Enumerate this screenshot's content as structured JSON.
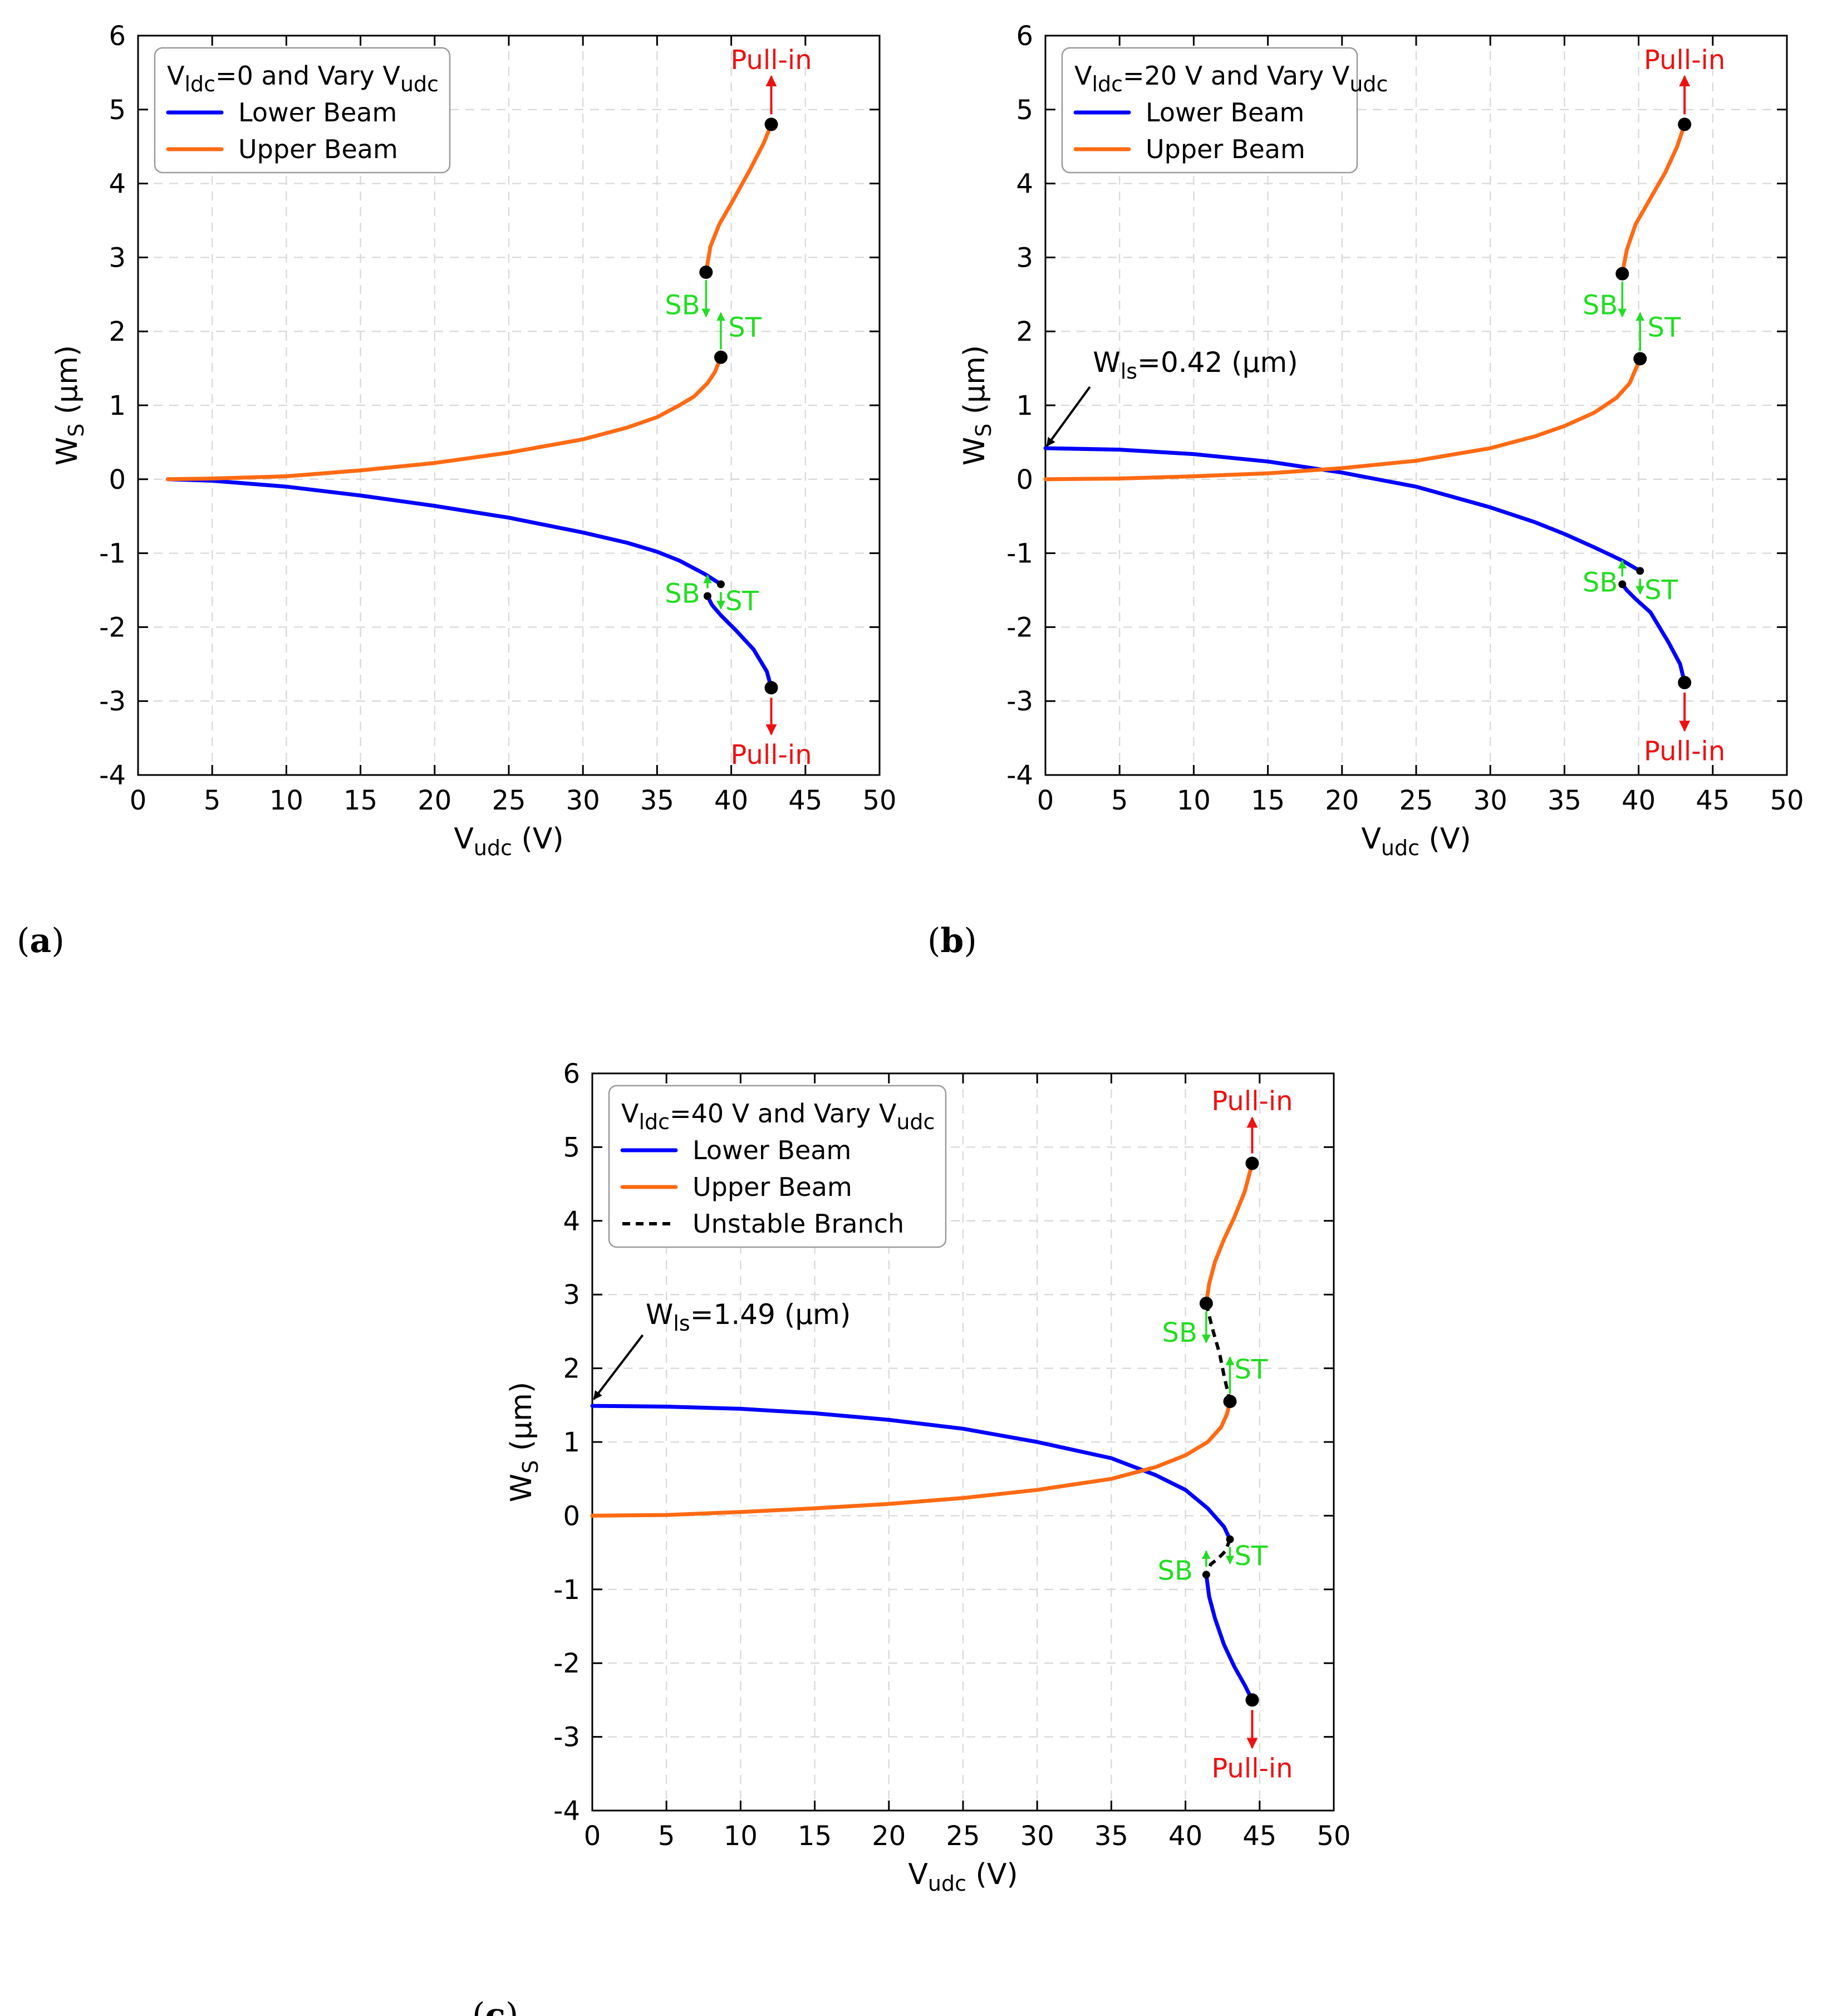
{
  "colors": {
    "lower_beam": "#0000ff",
    "upper_beam": "#ff6a13",
    "pull_in": "#ee1111",
    "transition": "#22dd22",
    "unstable": "#000000"
  },
  "chart_data": [
    {
      "type": "line",
      "panel_label": "a",
      "title": "",
      "xlabel": "V",
      "xlabel_sub": "udc",
      "xlabel_unit": " (V)",
      "ylabel": "W",
      "ylabel_sub": "S",
      "ylabel_unit": " (µm)",
      "xlim": [
        0,
        50
      ],
      "ylim": [
        -4,
        6
      ],
      "x_ticks": [
        "0",
        "5",
        "10",
        "15",
        "20",
        "25",
        "30",
        "35",
        "40",
        "45",
        "50"
      ],
      "y_ticks": [
        "-4",
        "-3",
        "-2",
        "-1",
        "0",
        "1",
        "2",
        "3",
        "4",
        "5",
        "6"
      ],
      "legend": {
        "title_parts": [
          "V",
          "ldc",
          "=0 and Vary V",
          "udc"
        ],
        "entries": [
          "Lower Beam",
          "Upper Beam"
        ],
        "position": "top-left"
      },
      "series": [
        {
          "name": "Lower Beam",
          "role": "lower",
          "x": [
            2,
            5,
            10,
            15,
            20,
            25,
            30,
            33,
            35,
            36.5,
            38.2,
            39.3
          ],
          "y": [
            0,
            -0.02,
            -0.1,
            -0.22,
            -0.36,
            -0.52,
            -0.72,
            -0.86,
            -0.98,
            -1.1,
            -1.28,
            -1.42
          ]
        },
        {
          "name": "Lower Beam",
          "role": "lower",
          "x": [
            38.4,
            38.7,
            39.3,
            40.3,
            41.5,
            42.4,
            42.7
          ],
          "y": [
            -1.58,
            -1.7,
            -1.84,
            -2.04,
            -2.3,
            -2.6,
            -2.82
          ]
        },
        {
          "name": "Upper Beam",
          "role": "upper",
          "x": [
            2,
            5,
            10,
            15,
            20,
            25,
            30,
            33,
            35,
            36.5,
            37.5,
            38.4,
            38.9,
            39.3
          ],
          "y": [
            0,
            0.01,
            0.04,
            0.12,
            0.22,
            0.36,
            0.54,
            0.7,
            0.84,
            1.0,
            1.12,
            1.3,
            1.45,
            1.65
          ]
        },
        {
          "name": "Upper Beam",
          "role": "upper",
          "x": [
            38.3,
            38.6,
            39.2,
            40.2,
            41.3,
            42.2,
            42.7
          ],
          "y": [
            2.8,
            3.15,
            3.45,
            3.8,
            4.2,
            4.55,
            4.8
          ]
        }
      ],
      "markers": [
        {
          "x": 42.7,
          "y": 4.8,
          "size": "large"
        },
        {
          "x": 38.3,
          "y": 2.8,
          "size": "large"
        },
        {
          "x": 39.3,
          "y": 1.65,
          "size": "large"
        },
        {
          "x": 42.7,
          "y": -2.82,
          "size": "large"
        },
        {
          "x": 39.3,
          "y": -1.42,
          "size": "small"
        },
        {
          "x": 38.4,
          "y": -1.58,
          "size": "small"
        }
      ],
      "arrows": [
        {
          "kind": "pull-in",
          "x": 42.7,
          "from": 4.8,
          "to": 5.45
        },
        {
          "kind": "pull-in",
          "x": 42.7,
          "from": -2.82,
          "to": -3.45
        },
        {
          "kind": "transition",
          "x": 38.3,
          "from": 2.8,
          "to": 2.2
        },
        {
          "kind": "transition",
          "x": 39.3,
          "from": 1.65,
          "to": 2.25
        },
        {
          "kind": "transition",
          "x": 38.4,
          "from": -1.58,
          "to": -1.3
        },
        {
          "kind": "transition",
          "x": 39.3,
          "from": -1.42,
          "to": -1.75
        }
      ],
      "labels": [
        {
          "text": "Pull-in",
          "kind": "pull-in",
          "x": 42.7,
          "y": 5.55,
          "anchor": "middle",
          "valign": "bottom"
        },
        {
          "text": "Pull-in",
          "kind": "pull-in",
          "x": 42.7,
          "y": -3.55,
          "anchor": "middle",
          "valign": "top"
        },
        {
          "text": "SB",
          "kind": "transition",
          "x": 37.9,
          "y": 2.35,
          "anchor": "end",
          "valign": "middle"
        },
        {
          "text": "ST",
          "kind": "transition",
          "x": 39.8,
          "y": 2.05,
          "anchor": "start",
          "valign": "middle"
        },
        {
          "text": "SB",
          "kind": "transition",
          "x": 37.9,
          "y": -1.55,
          "anchor": "end",
          "valign": "middle"
        },
        {
          "text": "ST",
          "kind": "transition",
          "x": 39.6,
          "y": -1.65,
          "anchor": "start",
          "valign": "middle"
        }
      ],
      "annotation": null
    },
    {
      "type": "line",
      "panel_label": "b",
      "title": "",
      "xlabel": "V",
      "xlabel_sub": "udc",
      "xlabel_unit": " (V)",
      "ylabel": "W",
      "ylabel_sub": "S",
      "ylabel_unit": " (µm)",
      "xlim": [
        0,
        50
      ],
      "ylim": [
        -4,
        6
      ],
      "x_ticks": [
        "0",
        "5",
        "10",
        "15",
        "20",
        "25",
        "30",
        "35",
        "40",
        "45",
        "50"
      ],
      "y_ticks": [
        "-4",
        "-3",
        "-2",
        "-1",
        "0",
        "1",
        "2",
        "3",
        "4",
        "5",
        "6"
      ],
      "legend": {
        "title_parts": [
          "V",
          "ldc",
          "=20 V and Vary V",
          "udc"
        ],
        "entries": [
          "Lower Beam",
          "Upper Beam"
        ],
        "position": "top-left"
      },
      "series": [
        {
          "name": "Lower Beam",
          "role": "lower",
          "x": [
            0,
            5,
            10,
            15,
            20,
            25,
            30,
            33,
            35,
            37,
            38.9,
            40.1
          ],
          "y": [
            0.42,
            0.4,
            0.34,
            0.24,
            0.09,
            -0.1,
            -0.38,
            -0.58,
            -0.74,
            -0.92,
            -1.1,
            -1.24
          ]
        },
        {
          "name": "Lower Beam",
          "role": "lower",
          "x": [
            38.9,
            39.2,
            39.8,
            40.8,
            42,
            42.8,
            43.1
          ],
          "y": [
            -1.42,
            -1.5,
            -1.62,
            -1.8,
            -2.2,
            -2.5,
            -2.75
          ]
        },
        {
          "name": "Upper Beam",
          "role": "upper",
          "x": [
            0,
            5,
            10,
            15,
            20,
            25,
            30,
            33,
            35,
            37,
            38.5,
            39.4,
            40.1
          ],
          "y": [
            0,
            0.01,
            0.04,
            0.08,
            0.15,
            0.25,
            0.42,
            0.58,
            0.72,
            0.9,
            1.1,
            1.3,
            1.63
          ]
        },
        {
          "name": "Upper Beam",
          "role": "upper",
          "x": [
            38.9,
            39.2,
            39.8,
            40.8,
            41.8,
            42.6,
            43.1
          ],
          "y": [
            2.78,
            3.1,
            3.45,
            3.8,
            4.15,
            4.5,
            4.8
          ]
        }
      ],
      "markers": [
        {
          "x": 43.1,
          "y": 4.8,
          "size": "large"
        },
        {
          "x": 38.9,
          "y": 2.78,
          "size": "large"
        },
        {
          "x": 40.1,
          "y": 1.63,
          "size": "large"
        },
        {
          "x": 43.1,
          "y": -2.75,
          "size": "large"
        },
        {
          "x": 40.1,
          "y": -1.24,
          "size": "small"
        },
        {
          "x": 38.9,
          "y": -1.42,
          "size": "small"
        }
      ],
      "arrows": [
        {
          "kind": "pull-in",
          "x": 43.1,
          "from": 4.8,
          "to": 5.45
        },
        {
          "kind": "pull-in",
          "x": 43.1,
          "from": -2.75,
          "to": -3.4
        },
        {
          "kind": "transition",
          "x": 38.9,
          "from": 2.78,
          "to": 2.2
        },
        {
          "kind": "transition",
          "x": 40.1,
          "from": 1.63,
          "to": 2.25
        },
        {
          "kind": "transition",
          "x": 38.9,
          "from": -1.42,
          "to": -1.1
        },
        {
          "kind": "transition",
          "x": 40.1,
          "from": -1.24,
          "to": -1.55
        }
      ],
      "labels": [
        {
          "text": "Pull-in",
          "kind": "pull-in",
          "x": 43.1,
          "y": 5.55,
          "anchor": "middle",
          "valign": "bottom"
        },
        {
          "text": "Pull-in",
          "kind": "pull-in",
          "x": 43.1,
          "y": -3.5,
          "anchor": "middle",
          "valign": "top"
        },
        {
          "text": "SB",
          "kind": "transition",
          "x": 38.6,
          "y": 2.35,
          "anchor": "end",
          "valign": "middle"
        },
        {
          "text": "ST",
          "kind": "transition",
          "x": 40.6,
          "y": 2.05,
          "anchor": "start",
          "valign": "middle"
        },
        {
          "text": "SB",
          "kind": "transition",
          "x": 38.6,
          "y": -1.4,
          "anchor": "end",
          "valign": "middle"
        },
        {
          "text": "ST",
          "kind": "transition",
          "x": 40.4,
          "y": -1.5,
          "anchor": "start",
          "valign": "middle"
        }
      ],
      "annotation": {
        "text_parts": [
          "W",
          "ls",
          "=0.42 (µm)"
        ],
        "text_x": 3.2,
        "text_y": 1.45,
        "arrow_from": [
          3.0,
          1.25
        ],
        "arrow_to": [
          0.1,
          0.45
        ]
      }
    },
    {
      "type": "line",
      "panel_label": "c",
      "title": "",
      "xlabel": "V",
      "xlabel_sub": "udc",
      "xlabel_unit": " (V)",
      "ylabel": "W",
      "ylabel_sub": "S",
      "ylabel_unit": " (µm)",
      "xlim": [
        0,
        50
      ],
      "ylim": [
        -4,
        6
      ],
      "x_ticks": [
        "0",
        "5",
        "10",
        "15",
        "20",
        "25",
        "30",
        "35",
        "40",
        "45",
        "50"
      ],
      "y_ticks": [
        "-4",
        "-3",
        "-2",
        "-1",
        "0",
        "1",
        "2",
        "3",
        "4",
        "5",
        "6"
      ],
      "legend": {
        "title_parts": [
          "V",
          "ldc",
          "=40 V and Vary V",
          "udc"
        ],
        "entries": [
          "Lower Beam",
          "Upper Beam",
          "Unstable Branch"
        ],
        "position": "top-left"
      },
      "series": [
        {
          "name": "Lower Beam",
          "role": "lower",
          "x": [
            0,
            5,
            10,
            15,
            20,
            25,
            30,
            35,
            38,
            40,
            41.5,
            42.6,
            43
          ],
          "y": [
            1.49,
            1.48,
            1.45,
            1.39,
            1.3,
            1.18,
            1.0,
            0.78,
            0.55,
            0.35,
            0.1,
            -0.15,
            -0.32
          ]
        },
        {
          "name": "Lower Beam",
          "role": "lower",
          "x": [
            41.4,
            41.6,
            42,
            42.6,
            43.3,
            44,
            44.5
          ],
          "y": [
            -0.8,
            -1.1,
            -1.4,
            -1.75,
            -2.05,
            -2.3,
            -2.5
          ]
        },
        {
          "name": "Upper Beam",
          "role": "upper",
          "x": [
            0,
            5,
            10,
            15,
            20,
            25,
            30,
            35,
            38,
            40,
            41.5,
            42.4,
            42.8,
            43
          ],
          "y": [
            0,
            0.01,
            0.05,
            0.1,
            0.16,
            0.24,
            0.35,
            0.5,
            0.66,
            0.82,
            1.0,
            1.2,
            1.38,
            1.55
          ]
        },
        {
          "name": "Upper Beam",
          "role": "upper",
          "x": [
            41.4,
            41.6,
            42,
            42.6,
            43.3,
            44,
            44.5
          ],
          "y": [
            2.88,
            3.15,
            3.45,
            3.75,
            4.05,
            4.4,
            4.78
          ]
        },
        {
          "name": "Unstable Branch",
          "role": "unstable",
          "x": [
            41.4,
            41.8,
            42.3,
            42.6,
            43
          ],
          "y": [
            2.88,
            2.55,
            2.2,
            1.9,
            1.55
          ]
        },
        {
          "name": "Unstable Branch",
          "role": "unstable",
          "x": [
            43,
            42.7,
            42.2,
            41.7,
            41.4
          ],
          "y": [
            -0.32,
            -0.48,
            -0.58,
            -0.66,
            -0.8
          ]
        }
      ],
      "markers": [
        {
          "x": 44.5,
          "y": 4.78,
          "size": "large"
        },
        {
          "x": 41.4,
          "y": 2.88,
          "size": "large"
        },
        {
          "x": 43,
          "y": 1.55,
          "size": "large"
        },
        {
          "x": 44.5,
          "y": -2.5,
          "size": "large"
        },
        {
          "x": 43,
          "y": -0.32,
          "size": "small"
        },
        {
          "x": 41.4,
          "y": -0.8,
          "size": "small"
        }
      ],
      "arrows": [
        {
          "kind": "pull-in",
          "x": 44.5,
          "from": 4.78,
          "to": 5.4
        },
        {
          "kind": "pull-in",
          "x": 44.5,
          "from": -2.5,
          "to": -3.15
        },
        {
          "kind": "transition",
          "x": 41.4,
          "from": 2.88,
          "to": 2.35
        },
        {
          "kind": "transition",
          "x": 43,
          "from": 1.55,
          "to": 2.15
        },
        {
          "kind": "transition",
          "x": 41.4,
          "from": -0.8,
          "to": -0.48
        },
        {
          "kind": "transition",
          "x": 43,
          "from": -0.32,
          "to": -0.65
        }
      ],
      "labels": [
        {
          "text": "Pull-in",
          "kind": "pull-in",
          "x": 44.5,
          "y": 5.5,
          "anchor": "middle",
          "valign": "bottom"
        },
        {
          "text": "Pull-in",
          "kind": "pull-in",
          "x": 44.5,
          "y": -3.25,
          "anchor": "middle",
          "valign": "top"
        },
        {
          "text": "SB",
          "kind": "transition",
          "x": 40.8,
          "y": 2.48,
          "anchor": "end",
          "valign": "middle"
        },
        {
          "text": "ST",
          "kind": "transition",
          "x": 43.3,
          "y": 1.98,
          "anchor": "start",
          "valign": "middle"
        },
        {
          "text": "SB",
          "kind": "transition",
          "x": 40.5,
          "y": -0.75,
          "anchor": "end",
          "valign": "middle"
        },
        {
          "text": "ST",
          "kind": "transition",
          "x": 43.3,
          "y": -0.55,
          "anchor": "start",
          "valign": "middle"
        }
      ],
      "annotation": {
        "text_parts": [
          "W",
          "ls",
          "=1.49 (µm)"
        ],
        "text_x": 3.6,
        "text_y": 2.6,
        "arrow_from": [
          3.4,
          2.45
        ],
        "arrow_to": [
          0.1,
          1.58
        ]
      }
    }
  ]
}
